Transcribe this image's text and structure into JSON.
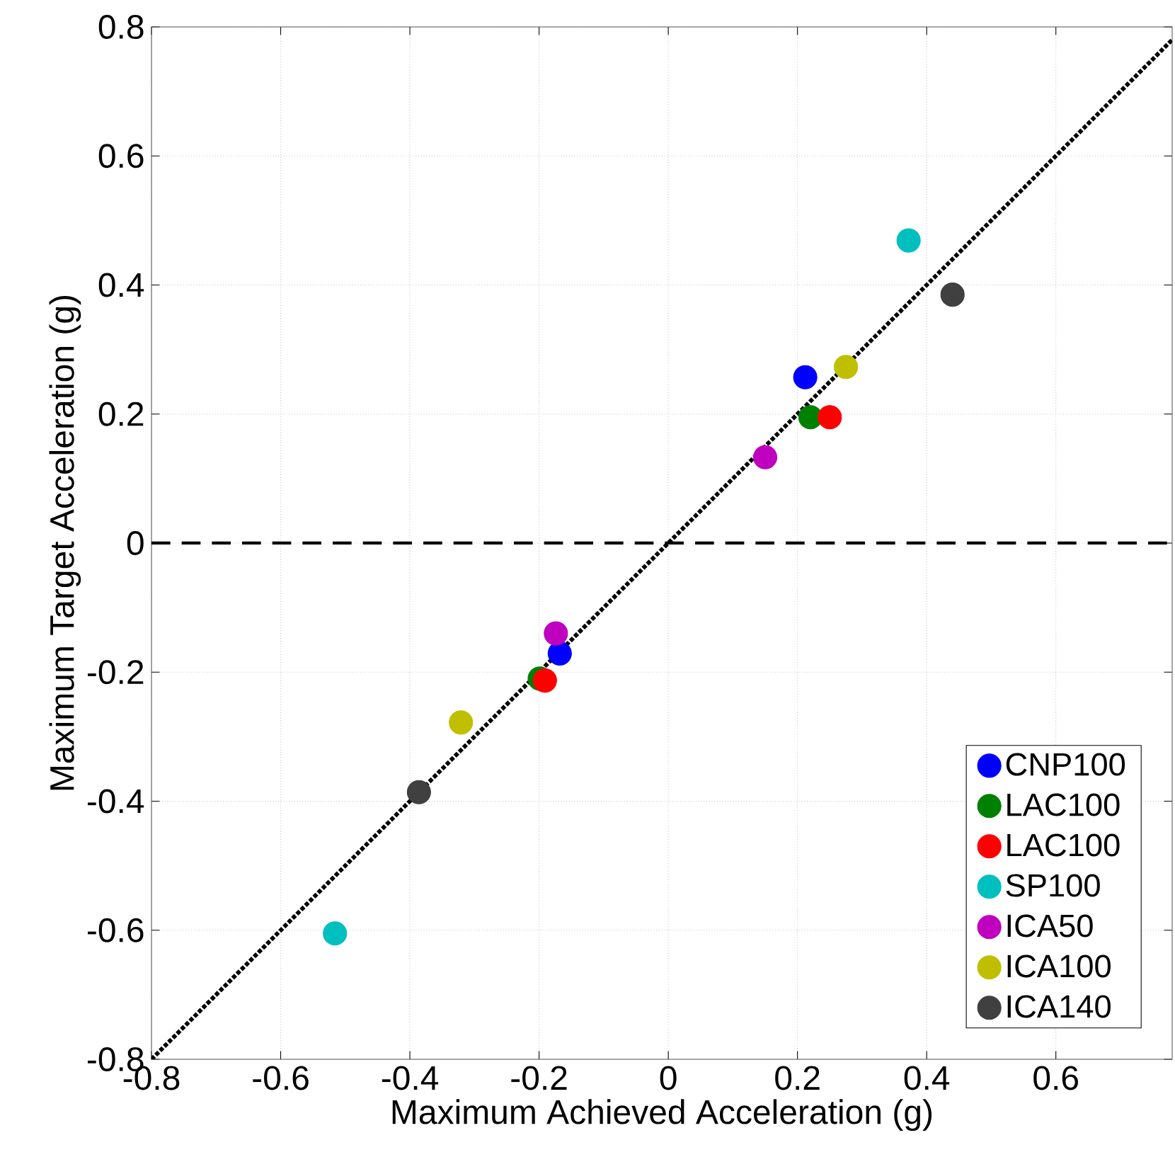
{
  "chart_data": {
    "type": "scatter",
    "xlabel": "Maximum Achieved Acceleration (g)",
    "ylabel": "Maximum Target Acceleration (g)",
    "xlim": [
      -0.8,
      0.78
    ],
    "ylim": [
      -0.8,
      0.8
    ],
    "xticks": [
      -0.8,
      -0.6,
      -0.4,
      -0.2,
      0,
      0.2,
      0.4,
      0.6
    ],
    "yticks": [
      -0.8,
      -0.6,
      -0.4,
      -0.2,
      0,
      0.2,
      0.4,
      0.6,
      0.8
    ],
    "grid": true,
    "legend": "bottom right",
    "marker": "circle",
    "ref_lines": [
      {
        "axis": "y",
        "value": 0,
        "color": "#000000",
        "line_style": "dashed"
      }
    ],
    "series": [
      {
        "name": "CNP100",
        "color": "#0000ff",
        "x": [
          -0.168,
          0.212
        ],
        "values": [
          -0.171,
          0.257
        ]
      },
      {
        "name": "LAC100",
        "color": "#008000",
        "x": [
          -0.199,
          0.22
        ],
        "values": [
          -0.21,
          0.195
        ]
      },
      {
        "name": "LAC100",
        "color": "#ff0000",
        "x": [
          -0.191,
          0.25
        ],
        "values": [
          -0.213,
          0.195
        ]
      },
      {
        "name": "SP100",
        "color": "#00bfbf",
        "x": [
          -0.516,
          0.372
        ],
        "values": [
          -0.605,
          0.469
        ]
      },
      {
        "name": "ICA50",
        "color": "#bf00bf",
        "x": [
          -0.174,
          0.15
        ],
        "values": [
          -0.14,
          0.133
        ]
      },
      {
        "name": "ICA100",
        "color": "#bfbf00",
        "x": [
          -0.321,
          0.275
        ],
        "values": [
          -0.278,
          0.273
        ]
      },
      {
        "name": "ICA140",
        "color": "#404040",
        "x": [
          -0.386,
          0.44
        ],
        "values": [
          -0.386,
          0.385
        ]
      },
      {
        "type": "line",
        "color": "#000000",
        "line_style": "dotted",
        "marker": "none",
        "x": [
          -0.8,
          0.78
        ],
        "values": [
          -0.8,
          0.78
        ]
      }
    ]
  }
}
